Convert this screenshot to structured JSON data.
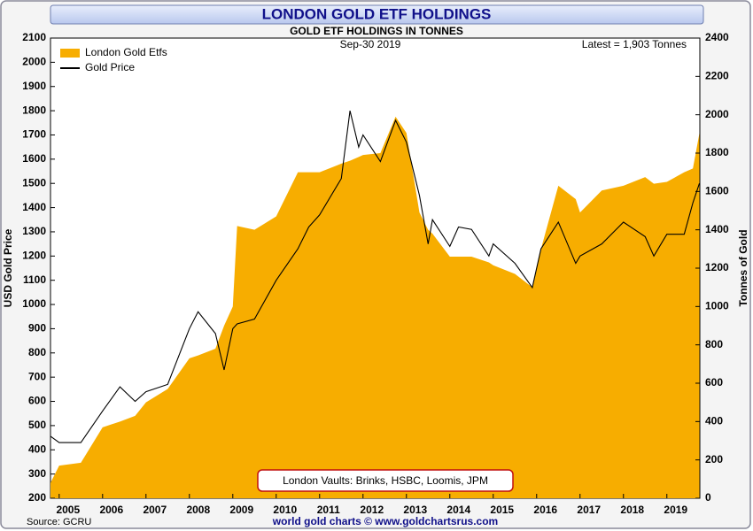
{
  "chart_data": {
    "type": "area-line",
    "title": "LONDON GOLD ETF HOLDINGS",
    "subtitle": "GOLD ETF HOLDINGS IN TONNES",
    "date_label": "Sep-30  2019",
    "latest_label": "Latest = 1,903 Tonnes",
    "ylabel": "USD Gold Price",
    "y2label": "Tonnes of Gold",
    "annotation": "London Vaults: Brinks, HSBC, Loomis, JPM",
    "source": "Source: GCRU",
    "footer": "world gold charts © www.goldchartsrus.com",
    "legend": "top-left",
    "x": [
      2004.8,
      2005.0,
      2005.5,
      2006.0,
      2006.4,
      2006.75,
      2007.0,
      2007.5,
      2008.0,
      2008.2,
      2008.6,
      2008.8,
      2009.0,
      2009.1,
      2009.5,
      2010.0,
      2010.5,
      2010.75,
      2011.0,
      2011.5,
      2011.7,
      2011.9,
      2012.0,
      2012.4,
      2012.75,
      2013.0,
      2013.3,
      2013.5,
      2013.6,
      2014.0,
      2014.2,
      2014.5,
      2014.9,
      2015.0,
      2015.5,
      2015.9,
      2016.1,
      2016.5,
      2016.9,
      2017.0,
      2017.5,
      2018.0,
      2018.5,
      2018.7,
      2019.0,
      2019.4,
      2019.6,
      2019.75
    ],
    "series": [
      {
        "name": "London Gold Etfs",
        "type": "area",
        "axis": "y2",
        "color": "#f7ad00",
        "values": [
          80,
          170,
          185,
          370,
          400,
          430,
          500,
          570,
          730,
          745,
          780,
          900,
          1000,
          1420,
          1400,
          1470,
          1700,
          1700,
          1700,
          1745,
          1760,
          1780,
          1790,
          1800,
          1990,
          1905,
          1490,
          1400,
          1380,
          1260,
          1260,
          1260,
          1230,
          1215,
          1170,
          1100,
          1300,
          1630,
          1560,
          1490,
          1605,
          1630,
          1675,
          1640,
          1650,
          1700,
          1720,
          1903
        ]
      },
      {
        "name": "Gold Price",
        "type": "line",
        "axis": "y",
        "color": "#000000",
        "values": [
          456,
          430,
          430,
          560,
          660,
          600,
          640,
          670,
          900,
          970,
          880,
          730,
          900,
          920,
          940,
          1100,
          1230,
          1320,
          1370,
          1520,
          1800,
          1650,
          1700,
          1590,
          1760,
          1670,
          1450,
          1250,
          1350,
          1240,
          1320,
          1310,
          1200,
          1250,
          1170,
          1070,
          1230,
          1340,
          1170,
          1200,
          1250,
          1340,
          1280,
          1200,
          1290,
          1290,
          1420,
          1500
        ]
      }
    ],
    "xlim": [
      2004.8,
      2019.76
    ],
    "xticks": [
      2005,
      2006,
      2007,
      2008,
      2009,
      2010,
      2011,
      2012,
      2013,
      2014,
      2015,
      2016,
      2017,
      2018,
      2019
    ],
    "ylim": [
      200,
      2100
    ],
    "yticks": [
      200,
      300,
      400,
      500,
      600,
      700,
      800,
      900,
      1000,
      1100,
      1200,
      1300,
      1400,
      1500,
      1600,
      1700,
      1800,
      1900,
      2000,
      2100
    ],
    "y2lim": [
      0,
      2400
    ],
    "y2ticks": [
      0,
      200,
      400,
      600,
      800,
      1000,
      1200,
      1400,
      1600,
      1800,
      2000,
      2200,
      2400
    ]
  }
}
